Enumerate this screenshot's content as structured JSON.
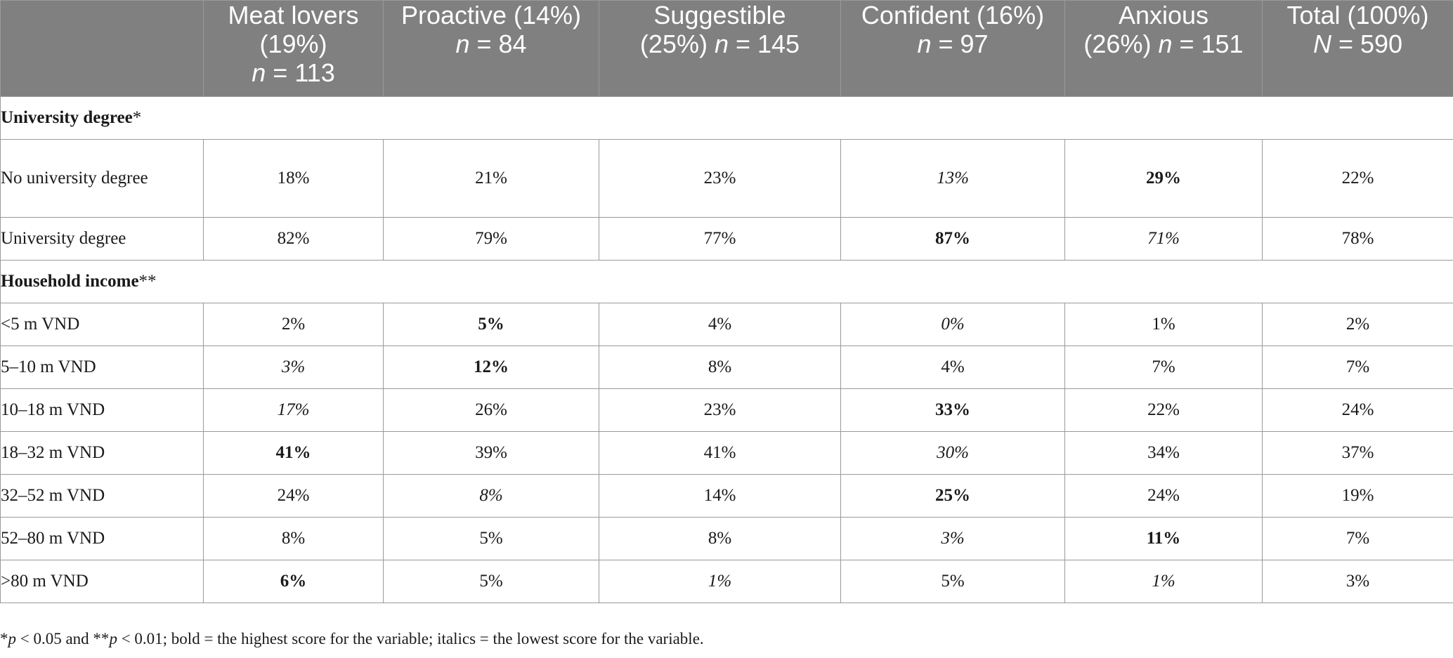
{
  "header": {
    "columns": [
      {
        "lines": [
          {
            "t": "Meat lovers"
          },
          {
            "t": "(19%)"
          },
          {
            "n": "n",
            "rest": " = 113"
          }
        ]
      },
      {
        "lines": [
          {
            "t": "Proactive (14%)"
          },
          {
            "n": "n",
            "rest": " = 84"
          }
        ]
      },
      {
        "lines": [
          {
            "t": "Suggestible"
          },
          {
            "t": "(25%) ",
            "n": "n",
            "rest": " = 145"
          }
        ]
      },
      {
        "lines": [
          {
            "t": "Confident (16%)"
          },
          {
            "n": "n",
            "rest": " = 97"
          }
        ]
      },
      {
        "lines": [
          {
            "t": "Anxious"
          },
          {
            "t": "(26%) ",
            "n": "n",
            "rest": " = 151"
          }
        ]
      },
      {
        "lines": [
          {
            "t": "Total (100%)"
          },
          {
            "n": "N",
            "rest": " = 590"
          }
        ]
      }
    ]
  },
  "sections": [
    {
      "title": "University degree",
      "stars": "*",
      "rows": [
        {
          "label": "No university degree",
          "tall": true,
          "values": [
            {
              "v": "18%"
            },
            {
              "v": "21%"
            },
            {
              "v": "23%"
            },
            {
              "v": "13%",
              "s": "italic"
            },
            {
              "v": "29%",
              "s": "bold"
            },
            {
              "v": "22%"
            }
          ]
        },
        {
          "label": "University degree",
          "values": [
            {
              "v": "82%"
            },
            {
              "v": "79%"
            },
            {
              "v": "77%"
            },
            {
              "v": "87%",
              "s": "bold"
            },
            {
              "v": "71%",
              "s": "italic"
            },
            {
              "v": "78%"
            }
          ]
        }
      ]
    },
    {
      "title": "Household income",
      "stars": "**",
      "rows": [
        {
          "label": "<5 m VND",
          "values": [
            {
              "v": "2%"
            },
            {
              "v": "5%",
              "s": "bold"
            },
            {
              "v": "4%"
            },
            {
              "v": "0%",
              "s": "italic"
            },
            {
              "v": "1%"
            },
            {
              "v": "2%"
            }
          ]
        },
        {
          "label": "5–10 m VND",
          "values": [
            {
              "v": "3%",
              "s": "italic"
            },
            {
              "v": "12%",
              "s": "bold"
            },
            {
              "v": "8%"
            },
            {
              "v": "4%"
            },
            {
              "v": "7%"
            },
            {
              "v": "7%"
            }
          ]
        },
        {
          "label": "10–18 m VND",
          "values": [
            {
              "v": "17%",
              "s": "italic"
            },
            {
              "v": "26%"
            },
            {
              "v": "23%"
            },
            {
              "v": "33%",
              "s": "bold"
            },
            {
              "v": "22%"
            },
            {
              "v": "24%"
            }
          ]
        },
        {
          "label": "18–32 m VND",
          "values": [
            {
              "v": "41%",
              "s": "bold"
            },
            {
              "v": "39%"
            },
            {
              "v": "41%"
            },
            {
              "v": "30%",
              "s": "italic"
            },
            {
              "v": "34%"
            },
            {
              "v": "37%"
            }
          ]
        },
        {
          "label": "32–52 m VND",
          "values": [
            {
              "v": "24%"
            },
            {
              "v": "8%",
              "s": "italic"
            },
            {
              "v": "14%"
            },
            {
              "v": "25%",
              "s": "bold"
            },
            {
              "v": "24%"
            },
            {
              "v": "19%"
            }
          ]
        },
        {
          "label": "52–80 m VND",
          "values": [
            {
              "v": "8%"
            },
            {
              "v": "5%"
            },
            {
              "v": "8%"
            },
            {
              "v": "3%",
              "s": "italic"
            },
            {
              "v": "11%",
              "s": "bold"
            },
            {
              "v": "7%"
            }
          ]
        },
        {
          "label": ">80 m VND",
          "values": [
            {
              "v": "6%",
              "s": "bold"
            },
            {
              "v": "5%"
            },
            {
              "v": "1%",
              "s": "italic"
            },
            {
              "v": "5%"
            },
            {
              "v": "1%",
              "s": "italic"
            },
            {
              "v": "3%"
            }
          ]
        }
      ]
    }
  ],
  "footnote": {
    "s1": "*",
    "p1": "p",
    "s2": " < 0.05 and **",
    "p2": "p",
    "s3": " < 0.01; bold = the highest score for the variable; italics = the lowest score for the variable."
  },
  "colors": {
    "header_bg": "#808080",
    "header_text": "#ffffff",
    "grid": "#9a9a9a"
  }
}
